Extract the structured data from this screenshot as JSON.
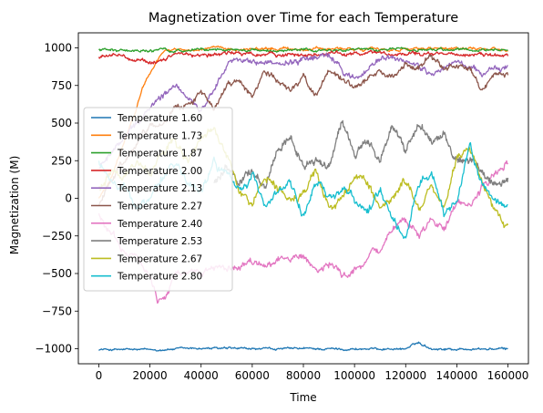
{
  "chart_data": {
    "type": "line",
    "title": "Magnetization over Time for each Temperature",
    "xlabel": "Time",
    "ylabel": "Magnetization (M)",
    "xlim": [
      -8000,
      168000
    ],
    "ylim": [
      -1100,
      1100
    ],
    "xticks": [
      0,
      20000,
      40000,
      60000,
      80000,
      100000,
      120000,
      140000,
      160000
    ],
    "xtick_labels": [
      "0",
      "20000",
      "40000",
      "60000",
      "80000",
      "100000",
      "120000",
      "140000",
      "160000"
    ],
    "yticks": [
      1000,
      750,
      500,
      250,
      0,
      -250,
      -500,
      -750,
      -1000
    ],
    "ytick_labels": [
      "1000",
      "750",
      "500",
      "250",
      "0",
      "−250",
      "−500",
      "−750",
      "−1000"
    ],
    "legend_position": "center-left",
    "grid": false,
    "series": [
      {
        "name": "Temperature 1.60",
        "color": "#1f77b4",
        "noise": 8,
        "x": [
          0,
          20000,
          40000,
          60000,
          80000,
          100000,
          120000,
          125000,
          130000,
          140000,
          160000
        ],
        "y": [
          -1005,
          -1008,
          -997,
          -1003,
          -1000,
          -1002,
          -1000,
          -960,
          -998,
          -1003,
          -1002
        ]
      },
      {
        "name": "Temperature 1.73",
        "color": "#ff7f0e",
        "noise": 10,
        "x": [
          0,
          5000,
          10000,
          14000,
          17000,
          20000,
          23000,
          26000,
          30000,
          40000,
          60000,
          80000,
          100000,
          120000,
          140000,
          160000
        ],
        "y": [
          0,
          140,
          380,
          560,
          720,
          840,
          920,
          985,
          990,
          993,
          992,
          993,
          991,
          992,
          990,
          989
        ]
      },
      {
        "name": "Temperature 1.87",
        "color": "#2ca02c",
        "noise": 10,
        "x": [
          0,
          20000,
          40000,
          60000,
          80000,
          100000,
          120000,
          140000,
          160000
        ],
        "y": [
          985,
          983,
          988,
          984,
          987,
          985,
          988,
          984,
          986
        ]
      },
      {
        "name": "Temperature 2.00",
        "color": "#d62728",
        "noise": 14,
        "x": [
          0,
          10000,
          20000,
          30000,
          40000,
          50000,
          60000,
          80000,
          100000,
          120000,
          140000,
          160000
        ],
        "y": [
          940,
          945,
          905,
          950,
          955,
          960,
          960,
          955,
          965,
          955,
          960,
          950
        ]
      },
      {
        "name": "Temperature 2.13",
        "color": "#9467bd",
        "noise": 22,
        "x": [
          0,
          10000,
          20000,
          30000,
          35000,
          40000,
          45000,
          50000,
          55000,
          60000,
          70000,
          80000,
          90000,
          100000,
          110000,
          120000,
          130000,
          140000,
          150000,
          160000
        ],
        "y": [
          200,
          400,
          600,
          750,
          660,
          560,
          740,
          880,
          930,
          910,
          900,
          920,
          940,
          790,
          930,
          920,
          820,
          900,
          830,
          870
        ]
      },
      {
        "name": "Temperature 2.27",
        "color": "#8c564b",
        "noise": 22,
        "x": [
          0,
          5000,
          10000,
          15000,
          20000,
          25000,
          30000,
          35000,
          40000,
          45000,
          50000,
          55000,
          60000,
          65000,
          70000,
          75000,
          80000,
          85000,
          90000,
          95000,
          100000,
          105000,
          110000,
          115000,
          120000,
          125000,
          130000,
          135000,
          140000,
          145000,
          150000,
          155000,
          160000
        ],
        "y": [
          -50,
          120,
          250,
          380,
          480,
          500,
          610,
          620,
          720,
          570,
          750,
          780,
          680,
          840,
          780,
          720,
          800,
          690,
          860,
          780,
          720,
          780,
          860,
          800,
          900,
          860,
          940,
          860,
          890,
          860,
          720,
          820,
          830
        ]
      },
      {
        "name": "Temperature 2.40",
        "color": "#e377c2",
        "noise": 28,
        "x": [
          0,
          5000,
          10000,
          15000,
          20000,
          23000,
          26000,
          30000,
          35000,
          40000,
          45000,
          50000,
          55000,
          60000,
          65000,
          70000,
          75000,
          80000,
          85000,
          90000,
          95000,
          100000,
          105000,
          110000,
          115000,
          120000,
          125000,
          130000,
          135000,
          140000,
          145000,
          150000,
          155000,
          160000
        ],
        "y": [
          -100,
          -250,
          -350,
          -380,
          -520,
          -680,
          -650,
          -500,
          -510,
          -480,
          -460,
          -500,
          -470,
          -420,
          -480,
          -400,
          -420,
          -370,
          -470,
          -420,
          -510,
          -480,
          -400,
          -320,
          -200,
          -150,
          -250,
          -130,
          -180,
          -60,
          -20,
          80,
          150,
          230
        ]
      },
      {
        "name": "Temperature 2.53",
        "color": "#7f7f7f",
        "noise": 28,
        "x": [
          45000,
          50000,
          55000,
          60000,
          65000,
          70000,
          75000,
          80000,
          85000,
          90000,
          95000,
          100000,
          105000,
          110000,
          115000,
          120000,
          125000,
          130000,
          135000,
          140000,
          145000,
          150000,
          155000,
          160000
        ],
        "y": [
          100,
          200,
          120,
          180,
          80,
          320,
          420,
          200,
          250,
          200,
          520,
          320,
          380,
          230,
          480,
          300,
          480,
          380,
          430,
          230,
          260,
          170,
          80,
          100
        ]
      },
      {
        "name": "Temperature 2.67",
        "color": "#bcbd22",
        "noise": 30,
        "x": [
          0,
          5000,
          10000,
          15000,
          20000,
          25000,
          30000,
          35000,
          40000,
          45000,
          50000,
          55000,
          60000,
          65000,
          70000,
          75000,
          80000,
          85000,
          90000,
          95000,
          100000,
          105000,
          110000,
          115000,
          120000,
          125000,
          130000,
          135000,
          140000,
          145000,
          150000,
          155000,
          160000
        ],
        "y": [
          80,
          180,
          130,
          250,
          160,
          320,
          380,
          220,
          400,
          450,
          300,
          60,
          -60,
          160,
          80,
          -30,
          40,
          160,
          -60,
          -20,
          170,
          80,
          -80,
          0,
          120,
          -60,
          80,
          -60,
          280,
          360,
          100,
          -100,
          -200
        ]
      },
      {
        "name": "Temperature 2.80",
        "color": "#17becf",
        "noise": 30,
        "x": [
          0,
          5000,
          10000,
          15000,
          20000,
          25000,
          30000,
          35000,
          40000,
          45000,
          50000,
          55000,
          60000,
          65000,
          70000,
          75000,
          80000,
          85000,
          90000,
          95000,
          100000,
          105000,
          110000,
          115000,
          120000,
          125000,
          130000,
          135000,
          140000,
          145000,
          150000,
          155000,
          160000
        ],
        "y": [
          250,
          100,
          50,
          -50,
          0,
          150,
          250,
          100,
          50,
          220,
          150,
          50,
          150,
          -50,
          30,
          120,
          -120,
          100,
          0,
          40,
          -20,
          -100,
          80,
          -150,
          -250,
          100,
          180,
          -100,
          -20,
          350,
          80,
          20,
          -50
        ]
      }
    ]
  }
}
